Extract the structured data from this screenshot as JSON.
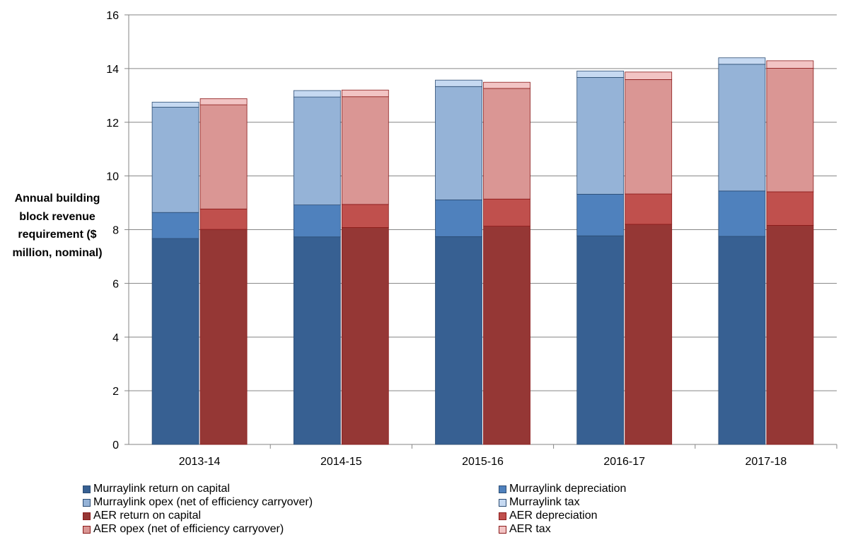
{
  "chart_data": {
    "type": "bar",
    "stacked": true,
    "grouped": true,
    "categories": [
      "2013-14",
      "2014-15",
      "2015-16",
      "2016-17",
      "2017-18"
    ],
    "ylabel": "Annual building block revenue requirement ($ million, nominal)",
    "ylim": [
      0,
      16
    ],
    "yticks": [
      0,
      2,
      4,
      6,
      8,
      10,
      12,
      14,
      16
    ],
    "grid": true,
    "legend_position": "bottom",
    "groups": [
      {
        "name": "Murraylink",
        "series": [
          {
            "name": "Murraylink return on capital",
            "color": "#376092",
            "values": [
              7.67,
              7.73,
              7.74,
              7.77,
              7.75
            ]
          },
          {
            "name": "Murraylink depreciation",
            "color": "#4f81bd",
            "values": [
              0.97,
              1.19,
              1.37,
              1.55,
              1.69
            ]
          },
          {
            "name": "Murraylink opex (net of efficiency carryover)",
            "color": "#95b3d7",
            "values": [
              3.92,
              4.02,
              4.22,
              4.35,
              4.72
            ]
          },
          {
            "name": "Murraylink tax",
            "color": "#c6d9f1",
            "values": [
              0.19,
              0.24,
              0.24,
              0.24,
              0.24
            ]
          }
        ]
      },
      {
        "name": "AER",
        "series": [
          {
            "name": "AER return on capital",
            "color": "#953735",
            "values": [
              8.01,
              8.08,
              8.13,
              8.2,
              8.16
            ]
          },
          {
            "name": "AER depreciation",
            "color": "#c0504d",
            "values": [
              0.76,
              0.86,
              1.01,
              1.13,
              1.25
            ]
          },
          {
            "name": "AER opex (net of efficiency carryover)",
            "color": "#da9694",
            "values": [
              3.88,
              4.01,
              4.12,
              4.26,
              4.6
            ]
          },
          {
            "name": "AER tax",
            "color": "#f2c4c4",
            "values": [
              0.23,
              0.25,
              0.23,
              0.28,
              0.28
            ]
          }
        ]
      }
    ]
  }
}
